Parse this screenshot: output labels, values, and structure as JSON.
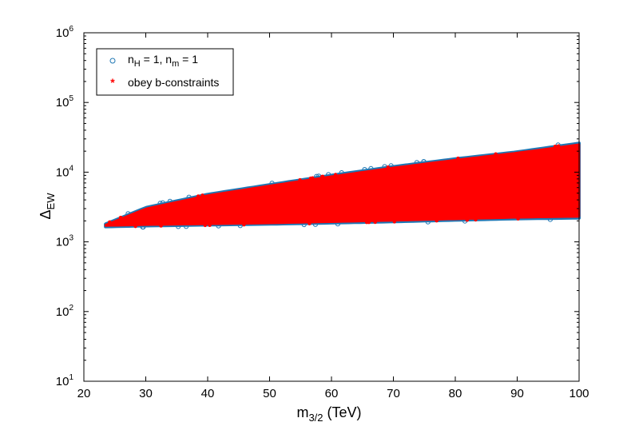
{
  "chart_data": {
    "type": "scatter",
    "xlabel": {
      "base": "m",
      "sub": "3/2",
      "rest": " (TeV)"
    },
    "ylabel": {
      "base": "Δ",
      "sub": "EW"
    },
    "xlim": [
      20,
      100
    ],
    "ylim": [
      10,
      1000000
    ],
    "yscale": "log",
    "xticks": [
      20,
      30,
      40,
      50,
      60,
      70,
      80,
      90,
      100
    ],
    "yticks": [
      {
        "value": 10,
        "base": "10",
        "exp": "1"
      },
      {
        "value": 100,
        "base": "10",
        "exp": "2"
      },
      {
        "value": 1000,
        "base": "10",
        "exp": "3"
      },
      {
        "value": 10000,
        "base": "10",
        "exp": "4"
      },
      {
        "value": 100000,
        "base": "10",
        "exp": "5"
      },
      {
        "value": 1000000,
        "base": "10",
        "exp": "6"
      }
    ],
    "grid": false,
    "legend_position": "top-left",
    "series": [
      {
        "name": "n_H = 1, n_m = 1",
        "legend": {
          "p1": "n",
          "s1": "H",
          "p2": " = 1, n",
          "s2": "m",
          "p3": " = 1"
        },
        "marker": "circle",
        "color": "#1f77b4",
        "envelope": {
          "x": [
            23.5,
            30,
            40,
            50,
            60,
            70,
            80,
            90,
            100
          ],
          "y_lower": [
            1650,
            1700,
            1750,
            1800,
            1870,
            1950,
            2050,
            2150,
            2200
          ],
          "y_upper": [
            1800,
            3100,
            4800,
            6600,
            9000,
            12000,
            15500,
            19500,
            26000
          ]
        }
      },
      {
        "name": "obey b-constraints",
        "legend": {
          "p1": "obey b-constraints"
        },
        "marker": "asterisk",
        "color": "#ff0000",
        "envelope": {
          "x": [
            23.5,
            30,
            40,
            50,
            60,
            70,
            80,
            90,
            100
          ],
          "y_lower": [
            1700,
            1750,
            1800,
            1850,
            1930,
            2020,
            2120,
            2230,
            2300
          ],
          "y_upper": [
            1750,
            3000,
            4650,
            6400,
            8700,
            11600,
            15000,
            19000,
            25000
          ]
        }
      }
    ]
  }
}
